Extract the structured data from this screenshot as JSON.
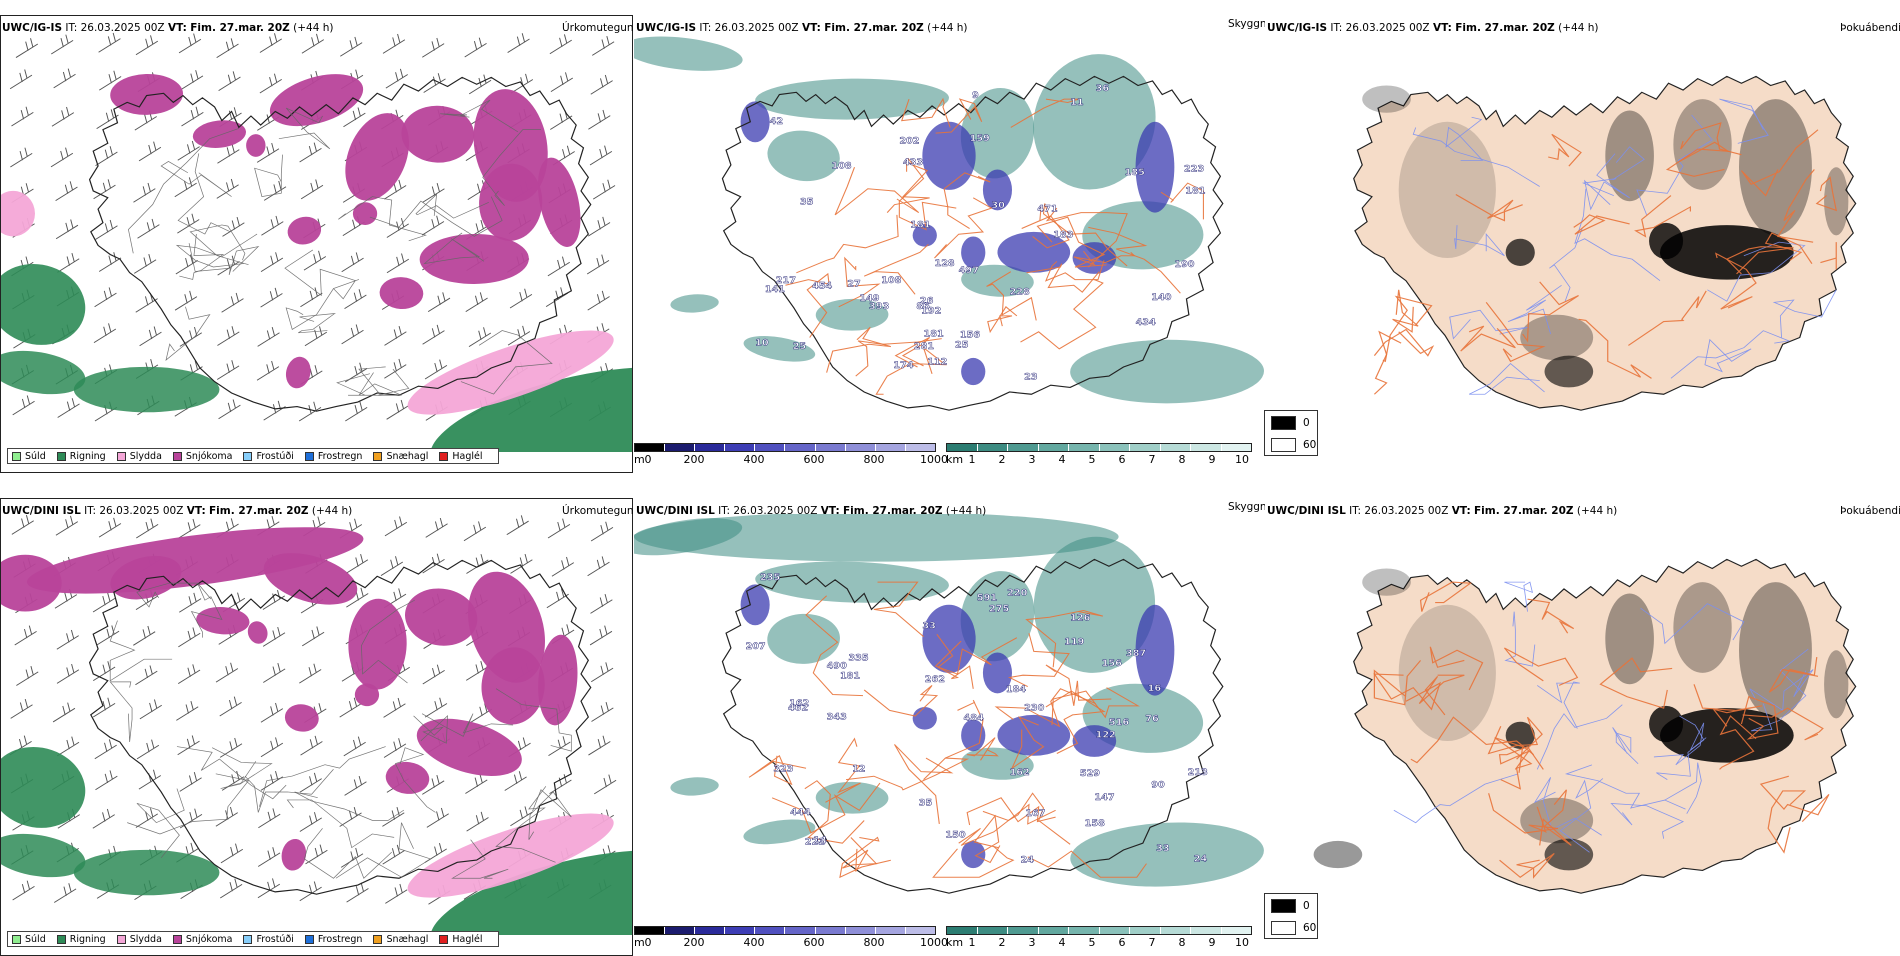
{
  "rows": [
    {
      "id": "igis",
      "header": {
        "model": "UWC/IG-IS",
        "it_label": "IT:",
        "it": "26.03.2025 00Z",
        "vt_label": "VT:",
        "vt": "Fim. 27.mar. 20Z",
        "lead": "(+44 h)"
      },
      "cloud_numbers": [
        "223",
        "174",
        "36",
        "25",
        "156",
        "42",
        "228",
        "26",
        "27",
        "11",
        "112",
        "23",
        "185",
        "434",
        "30",
        "393",
        "217",
        "433",
        "86",
        "181",
        "281",
        "497",
        "454",
        "190",
        "140",
        "183",
        "192",
        "181",
        "108",
        "141",
        "10",
        "181",
        "149",
        "128",
        "108",
        "202",
        "25",
        "35",
        "471",
        "9",
        "159"
      ]
    },
    {
      "id": "dini",
      "header": {
        "model": "UWC/DINI ISL",
        "it_label": "IT:",
        "it": "26.03.2025 00Z",
        "vt_label": "VT:",
        "vt": "Fim. 27.mar. 20Z",
        "lead": "(+44 h)"
      },
      "cloud_numbers": [
        "262",
        "213",
        "387",
        "14",
        "33",
        "323",
        "12",
        "162",
        "343",
        "24",
        "76",
        "591",
        "126",
        "24",
        "35",
        "122",
        "162",
        "222",
        "484",
        "119",
        "444",
        "490",
        "529",
        "167",
        "181",
        "275",
        "207",
        "33",
        "150",
        "230",
        "184",
        "156",
        "147",
        "220",
        "90",
        "516",
        "335",
        "462",
        "235",
        "16",
        "158"
      ]
    }
  ],
  "panel_titles": {
    "precip_type": "Úrkomutegund",
    "visibility": "Skyggni",
    "fog": "Þokuábendi"
  },
  "precip_legend": [
    {
      "label": "Súld",
      "color": "#90ee90"
    },
    {
      "label": "Rigning",
      "color": "#2e8b57"
    },
    {
      "label": "Slydda",
      "color": "#f4a6d7"
    },
    {
      "label": "Snjókoma",
      "color": "#b8439a"
    },
    {
      "label": "Frostúði",
      "color": "#87cefa"
    },
    {
      "label": "Frostregn",
      "color": "#1e6fd9"
    },
    {
      "label": "Snæhagl",
      "color": "#f0a020"
    },
    {
      "label": "Haglél",
      "color": "#e02020"
    }
  ],
  "cloud_base_scale": {
    "unit": "m",
    "ticks": [
      "0",
      "200",
      "400",
      "600",
      "800",
      "1000"
    ],
    "colors": [
      "#000000",
      "#1b1b6e",
      "#2a2a9a",
      "#3d3db5",
      "#5050bf",
      "#6565c8",
      "#7a7ad0",
      "#8f8fd8",
      "#a5a5e0",
      "#bdbde8"
    ]
  },
  "visibility_scale": {
    "unit": "km",
    "ticks": [
      "1",
      "2",
      "3",
      "4",
      "5",
      "6",
      "7",
      "8",
      "9",
      "10"
    ],
    "colors": [
      "#2c7d72",
      "#3d8c82",
      "#4f9a91",
      "#62a89f",
      "#76b5ad",
      "#8bc2bb",
      "#a0cfc8",
      "#b6dbd6",
      "#cce7e3",
      "#e2f3f1"
    ]
  },
  "fog_legend": [
    {
      "label": "0",
      "color": "#000000"
    },
    {
      "label": "60",
      "color": "#ffffff"
    }
  ],
  "colors": {
    "land_fog": "#f5dcc8",
    "road": "#e8733a",
    "river": "#7b8ff0",
    "coast": "#222222",
    "rain": "#2e8b57",
    "snow": "#b8439a",
    "sleet": "#f4a6d7",
    "vis": "#3e8d83",
    "cloudbase": "#3b3bb0"
  }
}
